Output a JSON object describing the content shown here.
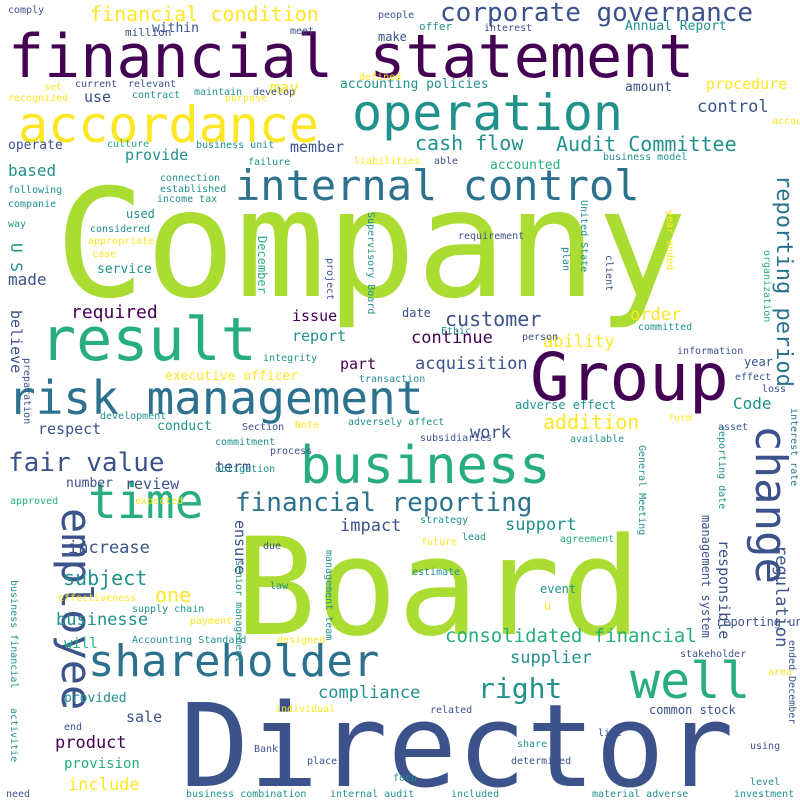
{
  "palette": {
    "dark_purple": "#440154",
    "indigo": "#3b528b",
    "blue": "#2c728e",
    "teal": "#21918c",
    "green": "#27ad81",
    "light_green": "#5ec962",
    "lime": "#aadc32",
    "yellow": "#fde725"
  },
  "words": [
    "Company",
    "Board",
    "Director",
    "financial statement",
    "operation",
    "accordance",
    "result",
    "Group",
    "risk management",
    "business",
    "internal control",
    "shareholder",
    "employee",
    "time",
    "well",
    "change",
    "financial reporting",
    "fair value",
    "corporate governance",
    "financial condition",
    "cash flow",
    "Audit Committee",
    "reporting period",
    "consolidated financial",
    "right",
    "customer",
    "supplier",
    "acquisition",
    "compliance",
    "product",
    "include",
    "ability",
    "addition",
    "responsible",
    "regulation",
    "management system",
    "increase",
    "subject",
    "support",
    "impact",
    "review",
    "ensure",
    "one",
    "businesse",
    "executive officer",
    "respect",
    "term",
    "work",
    "continue",
    "issue",
    "report",
    "member",
    "provide",
    "based",
    "made",
    "believe",
    "required",
    "order",
    "control",
    "procedure",
    "amount",
    "may",
    "use",
    "within",
    "Annual Report",
    "accounting policies",
    "accounted",
    "date",
    "part",
    "service",
    "used",
    "provided",
    "sale",
    "provision",
    "common stock",
    "will",
    "event",
    "u",
    "adverse effect",
    "Code",
    "year",
    "number",
    "conduct",
    "December",
    "U S",
    "million",
    "meet",
    "make",
    "offer",
    "interest",
    "people",
    "comply",
    "current",
    "relevant",
    "contract",
    "maintain",
    "develop",
    "purpose",
    "recognized",
    "set",
    "defined",
    "culture",
    "business unit",
    "account",
    "operate",
    "failure",
    "liabilities",
    "able",
    "business model",
    "connection",
    "established",
    "income tax",
    "following",
    "companie",
    "considered",
    "appropriate",
    "way",
    "case",
    "requirement",
    "project",
    "Supervisory Board",
    "plan",
    "United State",
    "client",
    "year ended",
    "organization",
    "person",
    "Ethic",
    "committed",
    "information",
    "effect",
    "loss",
    "integrity",
    "transaction",
    "preparation",
    "development",
    "Section",
    "Note",
    "adversely affect",
    "subsidiaries",
    "available",
    "asset",
    "form",
    "interest rate",
    "reporting date",
    "commitment",
    "obligation",
    "process",
    "approved",
    "expected",
    "strategy",
    "lead",
    "General Meeting",
    "agreement",
    "senior management",
    "due",
    "future",
    "estimate",
    "law",
    "management team",
    "effectiveness",
    "supply chain",
    "payment",
    "Accounting Standard",
    "designed",
    "reporting unit",
    "stakeholder",
    "area",
    "business financial",
    "individual",
    "related",
    "ended December",
    "activitie",
    "end",
    "Bank",
    "share",
    "line",
    "using",
    "level",
    "need",
    "place",
    "focu",
    "determined",
    "business combination",
    "internal audit",
    "included",
    "material adverse",
    "investment"
  ]
}
